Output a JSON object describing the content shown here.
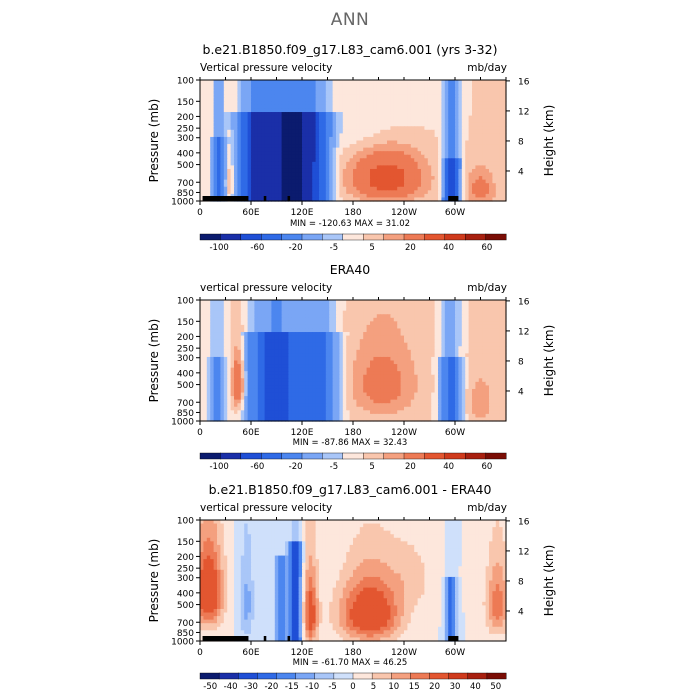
{
  "page_title": "ANN",
  "panels": [
    {
      "title": "b.e21.B1850.f09_g17.L83_cam6.001 (yrs 3-32)",
      "left_label": "Vertical pressure velocity",
      "right_label": "mb/day",
      "min_max": "MIN = -120.63   MAX =  31.02",
      "colorbar_labels": [
        "-100",
        "-60",
        "-20",
        "-5",
        "5",
        "20",
        "40",
        "60"
      ]
    },
    {
      "title": "ERA40",
      "left_label": "vertical pressure velocity",
      "right_label": "mb/day",
      "min_max": "MIN = -87.86   MAX =  32.43",
      "colorbar_labels": [
        "-100",
        "-60",
        "-20",
        "-5",
        "5",
        "20",
        "40",
        "60"
      ]
    },
    {
      "title": "b.e21.B1850.f09_g17.L83_cam6.001 - ERA40",
      "left_label": "vertical pressure velocity",
      "right_label": "mb/day",
      "min_max": "MIN = -61.70   MAX =  46.25",
      "colorbar_labels": [
        "-50",
        "-40",
        "-30",
        "-20",
        "-15",
        "-10",
        "-5",
        "0",
        "5",
        "10",
        "15",
        "20",
        "30",
        "40",
        "50"
      ]
    }
  ],
  "chart_data": [
    {
      "type": "heatmap",
      "title": "b.e21.B1850.f09_g17.L83_cam6.001 (yrs 3-32)",
      "ylabel": "Pressure (mb)",
      "y2label": "Height (km)",
      "x_ticks": [
        "0",
        "60E",
        "120E",
        "180",
        "120W",
        "60W"
      ],
      "x_tick_lon": [
        0,
        60,
        120,
        180,
        240,
        300
      ],
      "xlim": [
        0,
        360
      ],
      "y_ticks": [
        100,
        150,
        200,
        250,
        300,
        400,
        500,
        700,
        850,
        1000
      ],
      "ylim": [
        100,
        1000
      ],
      "y_scale": "log",
      "y2_ticks": [
        4,
        8,
        12,
        16
      ],
      "colorbar_levels": [
        -120,
        -100,
        -80,
        -60,
        -40,
        -20,
        -10,
        -5,
        0,
        5,
        10,
        20,
        30,
        40,
        50,
        60
      ],
      "min": -120.63,
      "max": 31.02
    },
    {
      "type": "heatmap",
      "title": "ERA40",
      "ylabel": "Pressure (mb)",
      "y2label": "Height (km)",
      "x_ticks": [
        "0",
        "60E",
        "120E",
        "180",
        "120W",
        "60W"
      ],
      "x_tick_lon": [
        0,
        60,
        120,
        180,
        240,
        300
      ],
      "xlim": [
        0,
        360
      ],
      "y_ticks": [
        100,
        150,
        200,
        250,
        300,
        400,
        500,
        700,
        850,
        1000
      ],
      "ylim": [
        100,
        1000
      ],
      "y_scale": "log",
      "y2_ticks": [
        4,
        8,
        12,
        16
      ],
      "colorbar_levels": [
        -120,
        -100,
        -80,
        -60,
        -40,
        -20,
        -10,
        -5,
        0,
        5,
        10,
        20,
        30,
        40,
        50,
        60
      ],
      "min": -87.86,
      "max": 32.43
    },
    {
      "type": "heatmap",
      "title": "b.e21.B1850.f09_g17.L83_cam6.001 - ERA40",
      "ylabel": "Pressure (mb)",
      "y2label": "Height (km)",
      "x_ticks": [
        "0",
        "60E",
        "120E",
        "180",
        "120W",
        "60W"
      ],
      "x_tick_lon": [
        0,
        60,
        120,
        180,
        240,
        300
      ],
      "xlim": [
        0,
        360
      ],
      "y_ticks": [
        100,
        150,
        200,
        250,
        300,
        400,
        500,
        700,
        850,
        1000
      ],
      "ylim": [
        100,
        1000
      ],
      "y_scale": "log",
      "y2_ticks": [
        4,
        8,
        12,
        16
      ],
      "colorbar_levels": [
        -60,
        -50,
        -40,
        -30,
        -20,
        -15,
        -10,
        -5,
        0,
        5,
        10,
        15,
        20,
        30,
        40,
        50,
        60
      ],
      "min": -61.7,
      "max": 46.25
    }
  ],
  "colors": {
    "ramp": [
      "#0b1b6e",
      "#1a2fa8",
      "#1f4fd6",
      "#2f6ae6",
      "#4c86ef",
      "#7aa6f5",
      "#a9c6f8",
      "#cfe0fb",
      "#fde7dc",
      "#f9c6ad",
      "#f4a07f",
      "#ed7a55",
      "#e35630",
      "#cf3a1c",
      "#a8200f",
      "#7a0d05"
    ]
  }
}
